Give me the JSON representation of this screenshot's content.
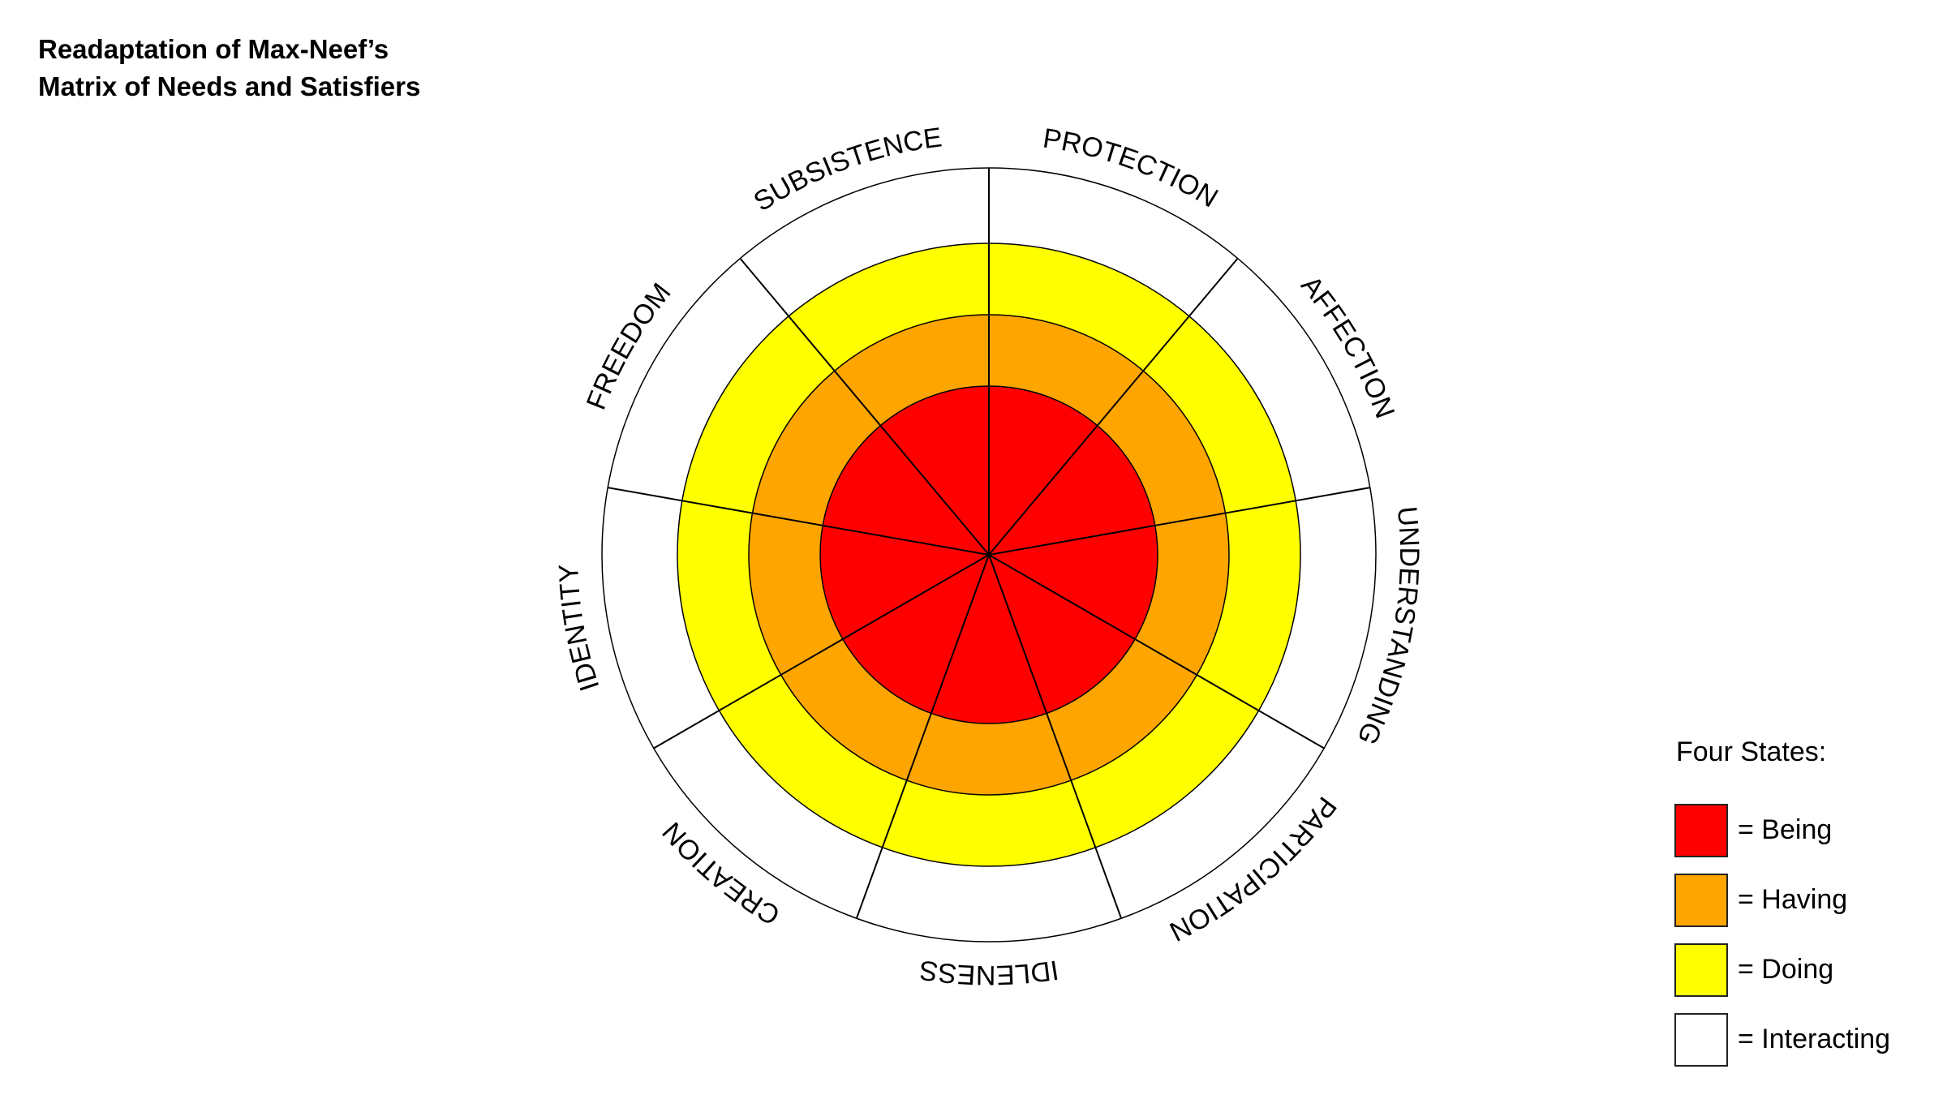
{
  "title": {
    "line1": "Readaptation of Max-Neef’s",
    "line2": "Matrix of Needs and Satisfiers"
  },
  "wheel": {
    "needs": [
      "SUBSISTENCE",
      "PROTECTION",
      "AFFECTION",
      "UNDERSTANDING",
      "PARTICIPATION",
      "IDLENESS",
      "CREATION",
      "IDENTITY",
      "FREEDOM"
    ],
    "rings": [
      {
        "state": "Interacting",
        "color": "#ffffff"
      },
      {
        "state": "Doing",
        "color": "#ffff00"
      },
      {
        "state": "Having",
        "color": "#ffa500"
      },
      {
        "state": "Being",
        "color": "#ff0000"
      }
    ]
  },
  "legend": {
    "title": "Four States:",
    "items": [
      {
        "label": "= Being",
        "color": "#ff0000"
      },
      {
        "label": "= Having",
        "color": "#ffa500"
      },
      {
        "label": "= Doing",
        "color": "#ffff00"
      },
      {
        "label": "= Interacting",
        "color": "#ffffff"
      }
    ]
  }
}
